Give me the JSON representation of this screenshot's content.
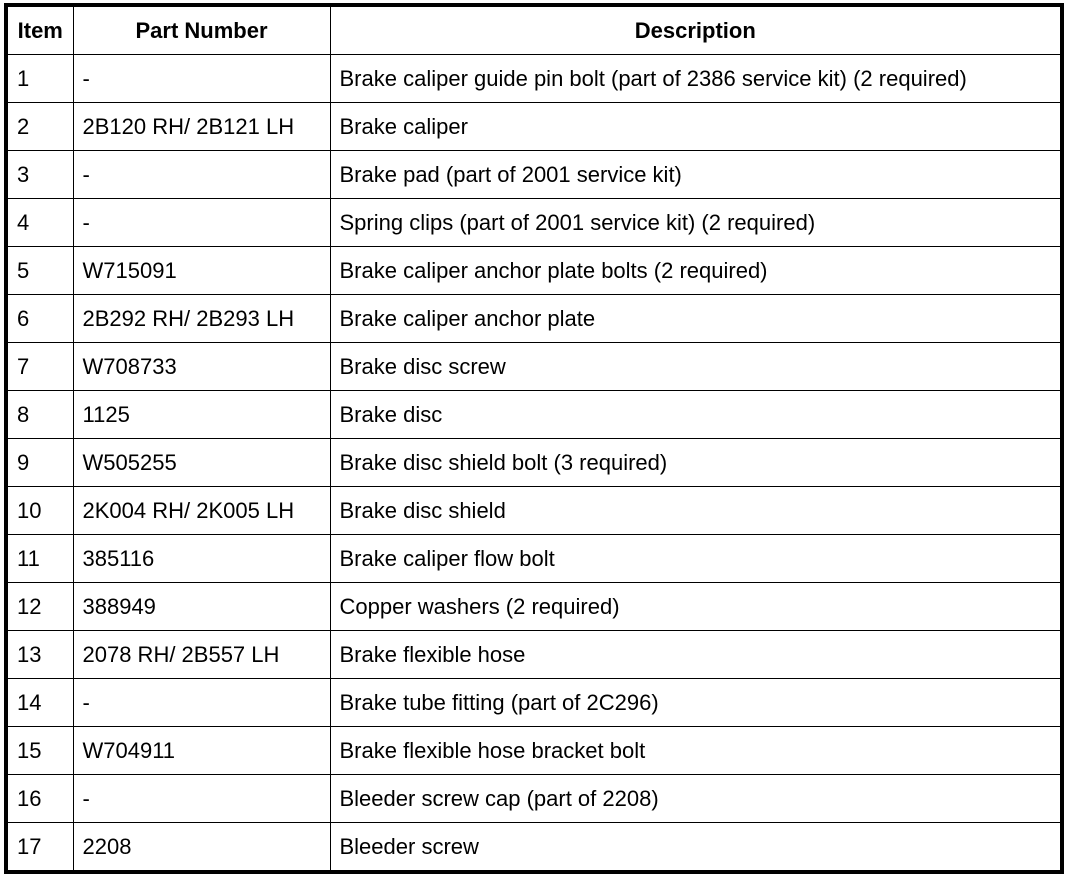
{
  "headers": {
    "item": "Item",
    "part_number": "Part Number",
    "description": "Description"
  },
  "rows": [
    {
      "item": "1",
      "part": "-",
      "desc": "Brake caliper guide pin bolt (part of 2386 service kit) (2 required)"
    },
    {
      "item": "2",
      "part": "2B120 RH/ 2B121 LH",
      "desc": "Brake caliper"
    },
    {
      "item": "3",
      "part": "-",
      "desc": "Brake pad (part of 2001 service kit)"
    },
    {
      "item": "4",
      "part": "-",
      "desc": "Spring clips (part of 2001 service kit) (2 required)"
    },
    {
      "item": "5",
      "part": "W715091",
      "desc": "Brake caliper anchor plate bolts (2 required)"
    },
    {
      "item": "6",
      "part": "2B292 RH/ 2B293 LH",
      "desc": "Brake caliper anchor plate"
    },
    {
      "item": "7",
      "part": "W708733",
      "desc": "Brake disc screw"
    },
    {
      "item": "8",
      "part": "1125",
      "desc": "Brake disc"
    },
    {
      "item": "9",
      "part": "W505255",
      "desc": "Brake disc shield bolt (3 required)"
    },
    {
      "item": "10",
      "part": "2K004 RH/ 2K005 LH",
      "desc": "Brake disc shield"
    },
    {
      "item": "11",
      "part": "385116",
      "desc": "Brake caliper flow bolt"
    },
    {
      "item": "12",
      "part": "388949",
      "desc": "Copper washers (2 required)"
    },
    {
      "item": "13",
      "part": "2078 RH/ 2B557 LH",
      "desc": "Brake flexible hose"
    },
    {
      "item": "14",
      "part": "-",
      "desc": "Brake tube fitting (part of 2C296)"
    },
    {
      "item": "15",
      "part": "W704911",
      "desc": "Brake flexible hose bracket bolt"
    },
    {
      "item": "16",
      "part": "-",
      "desc": "Bleeder screw cap (part of 2208)"
    },
    {
      "item": "17",
      "part": "2208",
      "desc": "Bleeder screw"
    }
  ]
}
